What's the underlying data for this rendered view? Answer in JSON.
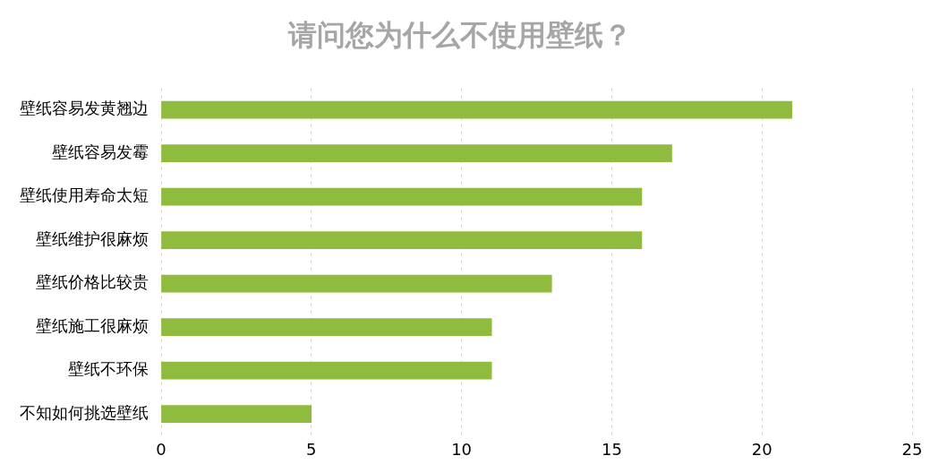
{
  "chart_data": {
    "type": "bar",
    "orientation": "horizontal",
    "title": "请问您为什么不使用壁纸？",
    "categories": [
      "壁纸容易发黄翘边",
      "壁纸容易发霉",
      "壁纸使用寿命太短",
      "壁纸维护很麻烦",
      "壁纸价格比较贵",
      "壁纸施工很麻烦",
      "壁纸不环保",
      "不知如何挑选壁纸"
    ],
    "values": [
      21,
      17,
      16,
      16,
      13,
      11,
      11,
      5
    ],
    "color": "#8fbc3f",
    "xlim": [
      0,
      25
    ],
    "xticks": [
      0,
      5,
      10,
      15,
      20,
      25
    ],
    "grid": "x",
    "legend": false
  }
}
